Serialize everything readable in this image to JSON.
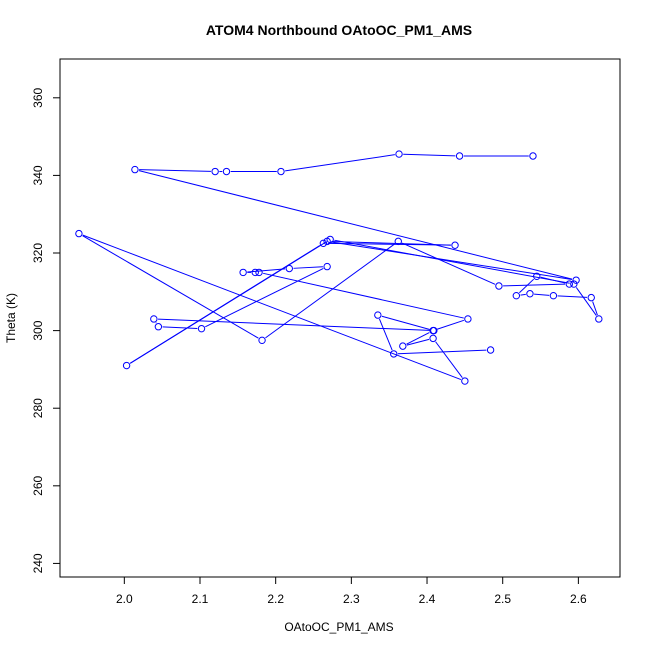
{
  "chart_data": {
    "type": "scatter",
    "title": "ATOM4 Northbound OAtoOC_PM1_AMS",
    "xlabel": "OAtoOC_PM1_AMS",
    "ylabel": "Theta (K)",
    "xlim": [
      1.915,
      2.655
    ],
    "ylim": [
      236.5,
      370
    ],
    "xticks": [
      2.0,
      2.1,
      2.2,
      2.3,
      2.4,
      2.5,
      2.6
    ],
    "xtick_labels": [
      "2.0",
      "2.1",
      "2.2",
      "2.3",
      "2.4",
      "2.5",
      "2.6"
    ],
    "yticks": [
      240,
      260,
      280,
      300,
      320,
      340,
      360
    ],
    "ytick_labels": [
      "240",
      "260",
      "280",
      "300",
      "320",
      "340",
      "360"
    ],
    "grid": false,
    "legend": "none",
    "mode": "lines+markers",
    "color": "#0000ff",
    "series": [
      {
        "x": [
          2.54,
          2.443,
          2.363,
          2.207,
          2.135,
          2.12,
          2.014,
          2.597,
          2.268,
          2.437,
          2.263,
          2.003,
          2.272,
          2.594,
          2.627,
          2.617,
          2.567,
          2.536,
          2.518,
          2.545,
          2.588,
          2.495,
          2.362,
          2.182,
          1.94,
          2.45,
          2.408,
          2.368,
          2.408,
          2.454,
          2.178,
          2.173,
          2.157,
          2.218,
          2.268,
          2.102,
          2.045,
          2.039,
          2.409,
          2.335,
          2.356,
          2.484
        ],
        "y": [
          345,
          345,
          345.5,
          341,
          341,
          341,
          341.5,
          313,
          323,
          322,
          322.5,
          291,
          323.5,
          312,
          303,
          308.5,
          309,
          309.5,
          309,
          314,
          312,
          311.5,
          323,
          297.5,
          325,
          287,
          298,
          296,
          300,
          303,
          315,
          315,
          315,
          316,
          316.5,
          300.5,
          301,
          303,
          300,
          304,
          294,
          295
        ]
      }
    ]
  }
}
